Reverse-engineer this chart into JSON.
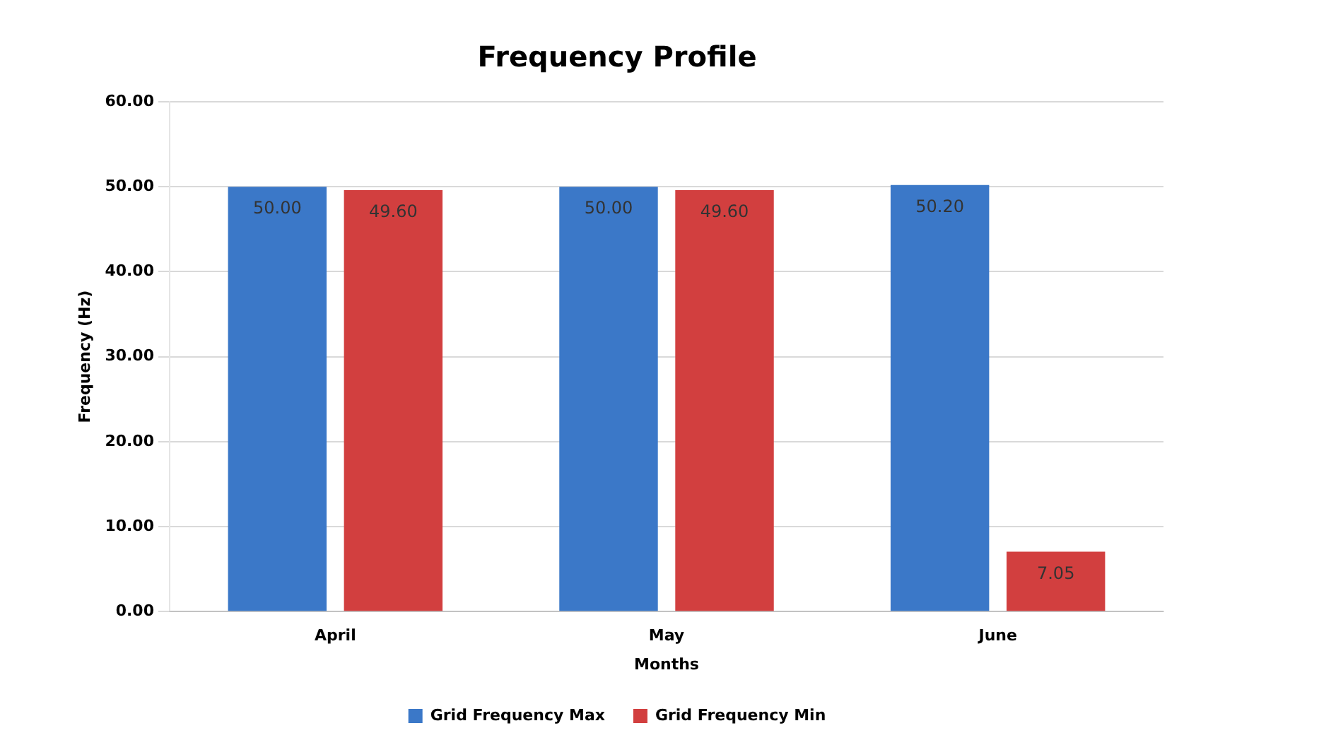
{
  "chart_data": {
    "type": "bar",
    "title": "Frequency Profile",
    "xlabel": "Months",
    "ylabel": "Frequency (Hz)",
    "categories": [
      "April",
      "May",
      "June"
    ],
    "series": [
      {
        "name": "Grid Frequency Max",
        "color": "#3b78c8",
        "values": [
          50.0,
          50.0,
          50.2
        ],
        "value_labels": [
          "50.00",
          "50.00",
          "50.20"
        ]
      },
      {
        "name": "Grid Frequency Min",
        "color": "#d23f3f",
        "values": [
          49.6,
          49.6,
          7.05
        ],
        "value_labels": [
          "49.60",
          "49.60",
          "7.05"
        ]
      }
    ],
    "ylim": [
      0,
      60
    ],
    "yticks": [
      {
        "value": 0,
        "label": "0.00"
      },
      {
        "value": 10,
        "label": "10.00"
      },
      {
        "value": 20,
        "label": "20.00"
      },
      {
        "value": 30,
        "label": "30.00"
      },
      {
        "value": 40,
        "label": "40.00"
      },
      {
        "value": 50,
        "label": "50.00"
      },
      {
        "value": 60,
        "label": "60.00"
      }
    ],
    "grid": "y",
    "legend": "bottom"
  }
}
